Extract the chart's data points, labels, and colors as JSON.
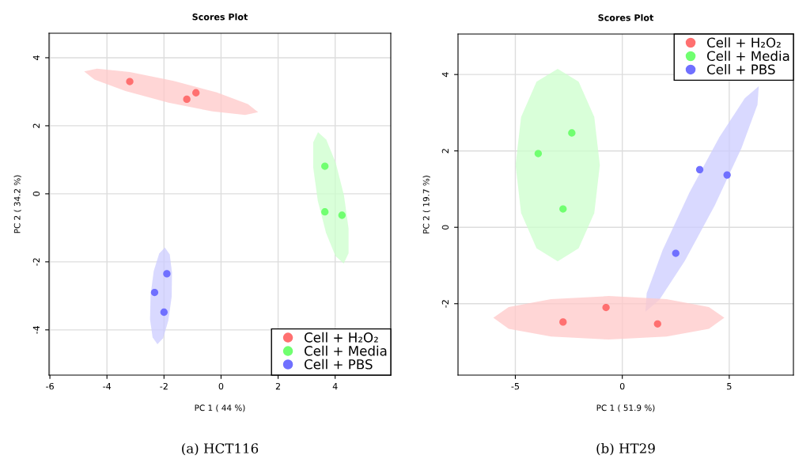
{
  "chart_data": [
    {
      "type": "scatter",
      "title": "Scores Plot",
      "xlabel": "PC 1 ( 44 %)",
      "ylabel": "PC 2 ( 34.2 %)",
      "xlim": [
        -6.03,
        5.95
      ],
      "ylim": [
        -5.33,
        4.72
      ],
      "xticks": [
        -6,
        -4,
        -2,
        0,
        2,
        4
      ],
      "yticks": [
        -4,
        -2,
        0,
        2,
        4
      ],
      "grid": true,
      "legend": "bottom right",
      "annotations": [
        "(a) HCT116"
      ],
      "series": [
        {
          "type": "area",
          "color": "#ffc8c8",
          "x": [
            1.3,
            0.94,
            -0.15,
            -1.66,
            -3.2,
            -4.35,
            -4.8,
            -4.44,
            -3.35,
            -1.84,
            -0.3,
            0.85
          ],
          "values": [
            2.4,
            2.64,
            2.98,
            3.32,
            3.58,
            3.68,
            3.6,
            3.36,
            3.02,
            2.68,
            2.42,
            2.32
          ]
        },
        {
          "type": "area",
          "color": "#ccffcc",
          "x": [
            3.4,
            3.69,
            4.02,
            4.31,
            4.47,
            4.47,
            4.3,
            4.01,
            3.68,
            3.39,
            3.23,
            3.23
          ],
          "values": [
            1.81,
            1.59,
            0.91,
            -0.05,
            -1.02,
            -1.75,
            -2.05,
            -1.83,
            -1.15,
            -0.2,
            0.78,
            1.51
          ]
        },
        {
          "type": "area",
          "color": "#ccccff",
          "x": [
            -1.97,
            -1.8,
            -1.72,
            -1.73,
            -1.85,
            -2.03,
            -2.23,
            -2.4,
            -2.49,
            -2.47,
            -2.36,
            -2.17
          ],
          "values": [
            -1.58,
            -1.78,
            -2.31,
            -3.02,
            -3.73,
            -4.24,
            -4.42,
            -4.22,
            -3.69,
            -2.98,
            -2.27,
            -1.76
          ]
        },
        {
          "name": "Cell + H₂O₂",
          "color": "#ff7070",
          "marker": "circle",
          "x": [
            -3.2,
            -1.2,
            -0.88
          ],
          "values": [
            3.3,
            2.78,
            2.97
          ]
        },
        {
          "name": "Cell + Media",
          "color": "#70ff70",
          "marker": "circle",
          "x": [
            3.64,
            3.64,
            4.24
          ],
          "values": [
            0.81,
            -0.53,
            -0.63
          ]
        },
        {
          "name": "Cell + PBS",
          "color": "#7070ff",
          "marker": "circle",
          "x": [
            -1.9,
            -2.33,
            -2.0
          ],
          "values": [
            -2.35,
            -2.9,
            -3.48
          ]
        }
      ]
    },
    {
      "type": "scatter",
      "title": "Scores Plot",
      "xlabel": "PC 1 ( 51.9 %)",
      "ylabel": "PC 2 ( 19.7 %)",
      "xlim": [
        -7.68,
        8.0
      ],
      "ylim": [
        -3.87,
        5.06
      ],
      "xticks": [
        -5,
        0,
        5
      ],
      "yticks": [
        -2,
        0,
        2,
        4
      ],
      "grid": true,
      "legend": "top right",
      "annotations": [
        "(b) HT29"
      ],
      "series": [
        {
          "type": "area",
          "color": "#ccffcc",
          "x": [
            -1.05,
            -1.31,
            -2.04,
            -3.02,
            -4.01,
            -4.73,
            -4.99,
            -4.73,
            -4.01,
            -3.02,
            -2.04,
            -1.31
          ],
          "values": [
            1.63,
            2.89,
            3.81,
            4.15,
            3.81,
            2.89,
            1.63,
            0.37,
            -0.55,
            -0.89,
            -0.55,
            0.37
          ]
        },
        {
          "type": "area",
          "color": "#ccccff",
          "x": [
            6.38,
            6.32,
            5.57,
            4.32,
            2.92,
            1.73,
            1.08,
            1.14,
            1.89,
            3.14,
            4.54,
            5.73
          ],
          "values": [
            3.69,
            3.21,
            2.07,
            0.57,
            -0.88,
            -1.9,
            -2.21,
            -1.73,
            -0.59,
            0.91,
            2.36,
            3.38
          ]
        },
        {
          "type": "area",
          "color": "#ffc8c8",
          "x": [
            4.77,
            4.05,
            2.07,
            -0.63,
            -3.33,
            -5.31,
            -6.03,
            -5.31,
            -3.33,
            -0.63,
            2.07,
            4.05
          ],
          "values": [
            -2.37,
            -2.09,
            -1.88,
            -1.8,
            -1.88,
            -2.09,
            -2.37,
            -2.66,
            -2.86,
            -2.94,
            -2.86,
            -2.66
          ]
        },
        {
          "name": "Cell + H₂O₂",
          "color": "#ff7070",
          "marker": "circle",
          "x": [
            -0.76,
            -2.77,
            1.65
          ],
          "values": [
            -2.1,
            -2.48,
            -2.53
          ]
        },
        {
          "name": "Cell + Media",
          "color": "#70ff70",
          "marker": "circle",
          "x": [
            -3.93,
            -2.36,
            -2.77
          ],
          "values": [
            1.93,
            2.47,
            0.48
          ]
        },
        {
          "name": "Cell + PBS",
          "color": "#7070ff",
          "marker": "circle",
          "x": [
            3.62,
            4.9,
            2.5
          ],
          "values": [
            1.51,
            1.37,
            -0.68
          ]
        }
      ]
    }
  ]
}
